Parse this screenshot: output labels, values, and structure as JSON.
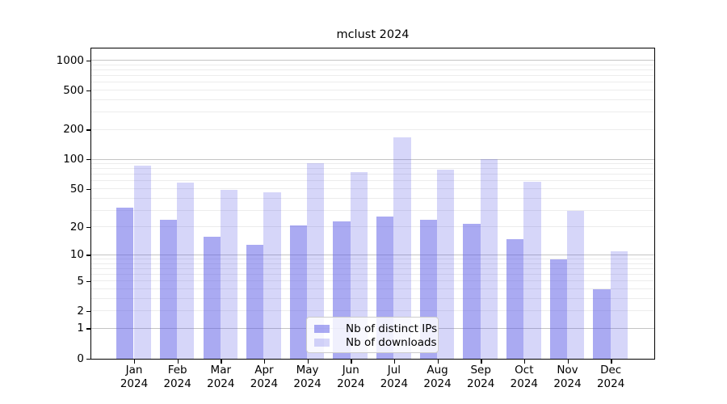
{
  "title": "mclust 2024",
  "colors": {
    "bar_ips": "rgba(85,85,229,0.5)",
    "bar_downloads": "rgba(85,85,229,0.24)",
    "grid_major": "#c4c4c4",
    "grid_minor": "#ececec",
    "spine": "#000000",
    "legend_border": "#cccccc"
  },
  "legend": {
    "items": [
      {
        "label": "Nb of distinct IPs"
      },
      {
        "label": "Nb of downloads"
      }
    ]
  },
  "x_axis": {
    "months": [
      "Jan",
      "Feb",
      "Mar",
      "Apr",
      "May",
      "Jun",
      "Jul",
      "Aug",
      "Sep",
      "Oct",
      "Nov",
      "Dec"
    ],
    "year": "2024"
  },
  "y_axis": {
    "tick_labels": [
      "0",
      "1",
      "2",
      "5",
      "10",
      "20",
      "50",
      "100",
      "200",
      "500",
      "1000"
    ]
  },
  "chart_data": {
    "type": "bar",
    "title": "mclust 2024",
    "scale_y": "log1p",
    "categories": [
      "Jan 2024",
      "Feb 2024",
      "Mar 2024",
      "Apr 2024",
      "May 2024",
      "Jun 2024",
      "Jul 2024",
      "Aug 2024",
      "Sep 2024",
      "Oct 2024",
      "Nov 2024",
      "Dec 2024"
    ],
    "series": [
      {
        "name": "Nb of distinct IPs",
        "values": [
          32,
          24,
          16,
          13,
          21,
          23,
          26,
          24,
          22,
          15,
          9,
          4
        ]
      },
      {
        "name": "Nb of downloads",
        "values": [
          87,
          58,
          49,
          46,
          92,
          74,
          168,
          79,
          102,
          59,
          30,
          11
        ]
      }
    ],
    "yticks": [
      0,
      1,
      2,
      5,
      10,
      20,
      50,
      100,
      200,
      500,
      1000
    ],
    "ylim": [
      0,
      1330
    ],
    "grid": true,
    "grid_major_values": [
      1,
      10,
      100,
      1000
    ],
    "grid_minor_values": [
      2,
      3,
      4,
      5,
      6,
      7,
      8,
      9,
      20,
      30,
      40,
      50,
      60,
      70,
      80,
      90,
      200,
      300,
      400,
      500,
      600,
      700,
      800,
      900
    ],
    "legend_position": "lower center"
  }
}
